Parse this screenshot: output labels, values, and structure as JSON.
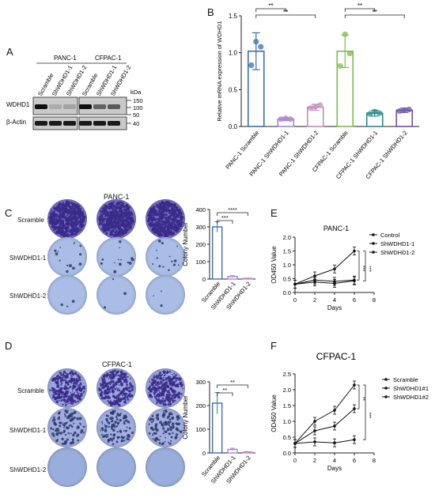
{
  "panels": {
    "A": {
      "label": "A",
      "groups": [
        "PANC-1",
        "CFPAC-1"
      ],
      "lanes": [
        "Scramble",
        "ShWDHD1-1",
        "ShWDHD1-2",
        "Scramble",
        "ShWDHD1-1",
        "ShWDHD1-2"
      ],
      "rows": [
        "WDHD1",
        "β-Actin"
      ],
      "kda_title": "kDa",
      "kda_markers": [
        "150",
        "100",
        "50",
        "40"
      ],
      "band_intensity": {
        "WDHD1": [
          1.0,
          0.15,
          0.2,
          1.0,
          0.55,
          0.6
        ],
        "beta_actin": [
          1.0,
          1.0,
          1.0,
          1.0,
          1.0,
          1.0
        ]
      }
    },
    "B": {
      "label": "B",
      "chart_data": {
        "type": "bar",
        "categories": [
          "PANC-1 Scramble",
          "PANC-1 ShWDHD1-1",
          "PANC-1 ShWDHD1-2",
          "CFPAC-1 Scramble",
          "CFPAC-1 ShWDHD1-1",
          "CFPAC-1 ShWDHD1-2"
        ],
        "values": [
          1.02,
          0.1,
          0.26,
          1.02,
          0.18,
          0.22
        ],
        "errors": [
          0.25,
          0.02,
          0.04,
          0.22,
          0.04,
          0.03
        ],
        "points": [
          [
            0.83,
            1.15,
            1.08
          ],
          [
            0.1,
            0.11,
            0.1
          ],
          [
            0.25,
            0.27,
            0.29
          ],
          [
            0.82,
            1.25,
            0.99
          ],
          [
            0.17,
            0.2,
            0.18
          ],
          [
            0.21,
            0.22,
            0.23
          ]
        ],
        "colors": [
          "#3a6fb0",
          "#a884c9",
          "#c58ac0",
          "#7cbf4a",
          "#2e8b8b",
          "#6e52a8"
        ],
        "ylabel": "Relative mRNA expression of WDHD1",
        "ylim": [
          0,
          1.5
        ],
        "yticks": [
          "0.0",
          "0.5",
          "1.0",
          "1.5"
        ],
        "significance": [
          "**",
          "**",
          "**",
          "**"
        ]
      }
    },
    "C": {
      "label": "C",
      "title": "PANC-1",
      "rows": [
        "Scramble",
        "ShWDHD1-1",
        "ShWDHD1-2"
      ],
      "chart_data": {
        "type": "bar",
        "categories": [
          "Scramble",
          "ShWDHD1-1",
          "ShWDHD1-2"
        ],
        "values": [
          300,
          15,
          4
        ],
        "errors": [
          30,
          4,
          2
        ],
        "ylabel": "Colony Number",
        "ylim": [
          0,
          400
        ],
        "yticks": [
          "0",
          "100",
          "200",
          "300",
          "400"
        ],
        "significance": [
          "***",
          "****"
        ]
      }
    },
    "D": {
      "label": "D",
      "title": "CFPAC-1",
      "rows": [
        "Scramble",
        "ShWDHD1-1",
        "ShWDHD1-2"
      ],
      "chart_data": {
        "type": "bar",
        "categories": [
          "Scramble",
          "ShWDHD1-1",
          "ShWDHD1-2"
        ],
        "values": [
          210,
          15,
          4
        ],
        "errors": [
          45,
          5,
          2
        ],
        "ylabel": "Colony Number",
        "ylim": [
          0,
          300
        ],
        "yticks": [
          "0",
          "100",
          "200",
          "300"
        ],
        "significance": [
          "**",
          "**"
        ]
      }
    },
    "E": {
      "label": "E",
      "chart_data": {
        "type": "line",
        "title": "PANC-1",
        "xlabel": "Days",
        "ylabel": "OD450 Value",
        "xlim": [
          0,
          8
        ],
        "ylim": [
          0.0,
          2.0
        ],
        "xticks": [
          "0",
          "2",
          "4",
          "6",
          "8"
        ],
        "yticks": [
          "0.0",
          "0.5",
          "1.0",
          "1.5",
          "2.0"
        ],
        "x": [
          0,
          2,
          4,
          6
        ],
        "series": [
          {
            "name": "Control",
            "values": [
              0.3,
              0.6,
              0.85,
              1.5
            ]
          },
          {
            "name": "ShWDHD1-1",
            "values": [
              0.3,
              0.45,
              0.4,
              0.45
            ]
          },
          {
            "name": "ShWDHD1-2",
            "values": [
              0.3,
              0.38,
              0.33,
              0.42
            ]
          }
        ],
        "significance": [
          "***",
          "***"
        ]
      }
    },
    "F": {
      "label": "F",
      "chart_data": {
        "type": "line",
        "title": "CFPAC-1",
        "xlabel": "Days",
        "ylabel": "OD450 Value",
        "xlim": [
          0,
          8
        ],
        "ylim": [
          0.0,
          2.5
        ],
        "xticks": [
          "0",
          "2",
          "4",
          "6",
          "8"
        ],
        "yticks": [
          "0.0",
          "0.5",
          "1.0",
          "1.5",
          "2.0",
          "2.5"
        ],
        "x": [
          0,
          2,
          4,
          6
        ],
        "series": [
          {
            "name": "Scramble",
            "values": [
              0.3,
              1.0,
              1.35,
              2.15
            ]
          },
          {
            "name": "ShWDHD1#1",
            "values": [
              0.3,
              0.7,
              0.85,
              1.4
            ]
          },
          {
            "name": "ShWDHD1#2",
            "values": [
              0.3,
              0.35,
              0.32,
              0.42
            ]
          }
        ],
        "significance": [
          "**",
          "***"
        ]
      }
    }
  }
}
